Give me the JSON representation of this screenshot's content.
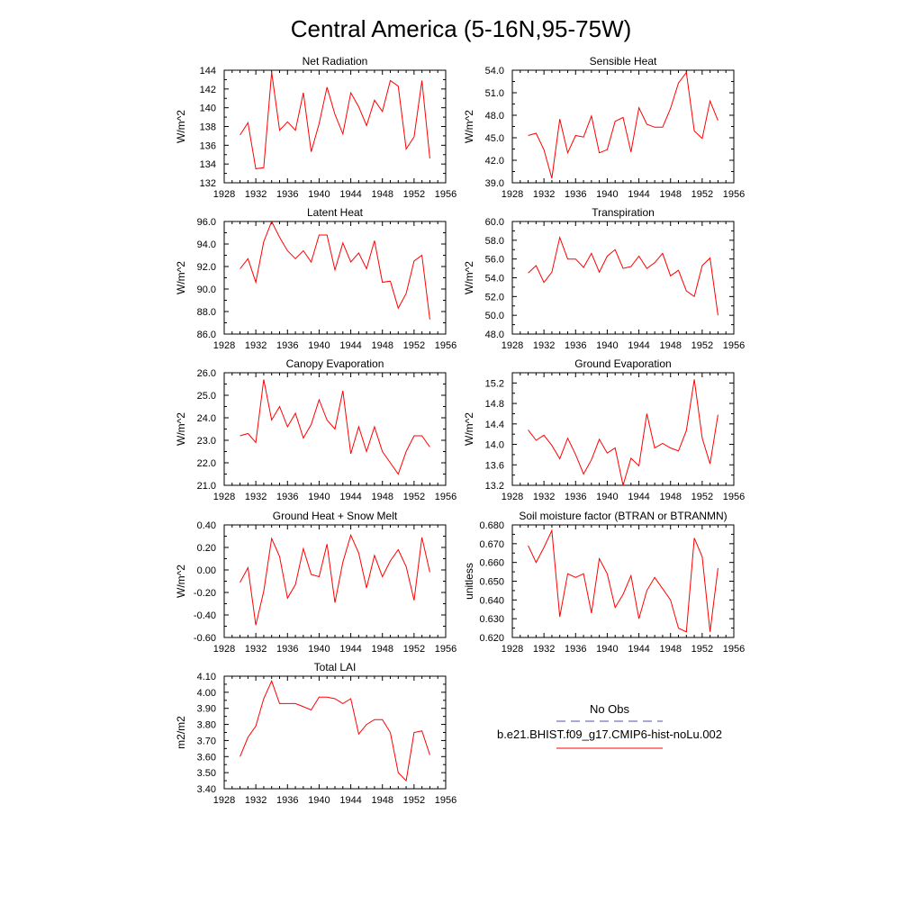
{
  "page_title": "Central America (5-16N,95-75W)",
  "colors": {
    "series": "#ff0000",
    "obs": "#5050b0",
    "frame": "#000000"
  },
  "legend": {
    "obs_label": "No Obs",
    "model_label": "b.e21.BHIST.f09_g17.CMIP6-hist-noLu.002"
  },
  "chart_data": [
    {
      "type": "line",
      "title": "Net Radiation",
      "ylabel": "W/m^2",
      "xlim": [
        1928,
        1956
      ],
      "xticks": [
        "1928",
        "1932",
        "1936",
        "1940",
        "1944",
        "1948",
        "1952",
        "1956"
      ],
      "ylim": [
        132,
        144
      ],
      "yticks": [
        "132",
        "134",
        "136",
        "138",
        "140",
        "142",
        "144"
      ],
      "x": [
        1930,
        1931,
        1932,
        1933,
        1934,
        1935,
        1936,
        1937,
        1938,
        1939,
        1940,
        1941,
        1942,
        1943,
        1944,
        1945,
        1946,
        1947,
        1948,
        1949,
        1950,
        1951,
        1952,
        1953,
        1954
      ],
      "series": [
        {
          "values": [
            137.1,
            138.4,
            133.5,
            133.6,
            143.8,
            137.6,
            138.5,
            137.6,
            141.6,
            135.3,
            138.3,
            142.2,
            139.3,
            137.2,
            141.6,
            140.1,
            138.1,
            140.8,
            139.6,
            142.9,
            142.3,
            135.6,
            136.9,
            142.9,
            134.6
          ]
        }
      ]
    },
    {
      "type": "line",
      "title": "Sensible Heat",
      "ylabel": "W/m^2",
      "xlim": [
        1928,
        1956
      ],
      "xticks": [
        "1928",
        "1932",
        "1936",
        "1940",
        "1944",
        "1948",
        "1952",
        "1956"
      ],
      "ylim": [
        39,
        54
      ],
      "yticks": [
        "39.0",
        "42.0",
        "45.0",
        "48.0",
        "51.0",
        "54.0"
      ],
      "x": [
        1930,
        1931,
        1932,
        1933,
        1934,
        1935,
        1936,
        1937,
        1938,
        1939,
        1940,
        1941,
        1942,
        1943,
        1944,
        1945,
        1946,
        1947,
        1948,
        1949,
        1950,
        1951,
        1952,
        1953,
        1954
      ],
      "series": [
        {
          "values": [
            45.3,
            45.6,
            43.4,
            39.6,
            47.5,
            43.0,
            45.3,
            45.1,
            47.9,
            43.0,
            43.4,
            47.2,
            47.7,
            43.1,
            49.0,
            46.8,
            46.4,
            46.4,
            48.9,
            52.3,
            53.7,
            45.9,
            44.9,
            49.9,
            47.3
          ]
        }
      ]
    },
    {
      "type": "line",
      "title": "Latent Heat",
      "ylabel": "W/m^2",
      "xlim": [
        1928,
        1956
      ],
      "xticks": [
        "1928",
        "1932",
        "1936",
        "1940",
        "1944",
        "1948",
        "1952",
        "1956"
      ],
      "ylim": [
        86,
        96
      ],
      "yticks": [
        "86.0",
        "88.0",
        "90.0",
        "92.0",
        "94.0",
        "96.0"
      ],
      "x": [
        1930,
        1931,
        1932,
        1933,
        1934,
        1935,
        1936,
        1937,
        1938,
        1939,
        1940,
        1941,
        1942,
        1943,
        1944,
        1945,
        1946,
        1947,
        1948,
        1949,
        1950,
        1951,
        1952,
        1953,
        1954
      ],
      "series": [
        {
          "values": [
            91.8,
            92.7,
            90.6,
            94.2,
            96.0,
            94.6,
            93.4,
            92.7,
            93.4,
            92.4,
            94.8,
            94.8,
            91.7,
            94.1,
            92.4,
            93.2,
            91.8,
            94.3,
            90.6,
            90.7,
            88.3,
            89.6,
            92.5,
            93.0,
            87.3
          ]
        }
      ]
    },
    {
      "type": "line",
      "title": "Transpiration",
      "ylabel": "W/m^2",
      "xlim": [
        1928,
        1956
      ],
      "xticks": [
        "1928",
        "1932",
        "1936",
        "1940",
        "1944",
        "1948",
        "1952",
        "1956"
      ],
      "ylim": [
        48,
        60
      ],
      "yticks": [
        "48.0",
        "50.0",
        "52.0",
        "54.0",
        "56.0",
        "58.0",
        "60.0"
      ],
      "x": [
        1930,
        1931,
        1932,
        1933,
        1934,
        1935,
        1936,
        1937,
        1938,
        1939,
        1940,
        1941,
        1942,
        1943,
        1944,
        1945,
        1946,
        1947,
        1948,
        1949,
        1950,
        1951,
        1952,
        1953,
        1954
      ],
      "series": [
        {
          "values": [
            54.5,
            55.3,
            53.5,
            54.6,
            58.3,
            56.0,
            56.0,
            55.1,
            56.6,
            54.6,
            56.3,
            57.0,
            55.0,
            55.2,
            56.3,
            55.0,
            55.6,
            56.6,
            54.2,
            54.8,
            52.6,
            52.0,
            55.3,
            56.1,
            50.0
          ]
        }
      ]
    },
    {
      "type": "line",
      "title": "Canopy Evaporation",
      "ylabel": "W/m^2",
      "xlim": [
        1928,
        1956
      ],
      "xticks": [
        "1928",
        "1932",
        "1936",
        "1940",
        "1944",
        "1948",
        "1952",
        "1956"
      ],
      "ylim": [
        21,
        26
      ],
      "yticks": [
        "21.0",
        "22.0",
        "23.0",
        "24.0",
        "25.0",
        "26.0"
      ],
      "x": [
        1930,
        1931,
        1932,
        1933,
        1934,
        1935,
        1936,
        1937,
        1938,
        1939,
        1940,
        1941,
        1942,
        1943,
        1944,
        1945,
        1946,
        1947,
        1948,
        1949,
        1950,
        1951,
        1952,
        1953,
        1954
      ],
      "series": [
        {
          "values": [
            23.2,
            23.3,
            22.9,
            25.7,
            23.9,
            24.5,
            23.6,
            24.2,
            23.1,
            23.7,
            24.8,
            23.9,
            23.5,
            25.2,
            22.4,
            23.6,
            22.5,
            23.6,
            22.5,
            22.0,
            21.5,
            22.5,
            23.2,
            23.2,
            22.7
          ]
        }
      ]
    },
    {
      "type": "line",
      "title": "Ground Evaporation",
      "ylabel": "W/m^2",
      "xlim": [
        1928,
        1956
      ],
      "xticks": [
        "1928",
        "1932",
        "1936",
        "1940",
        "1944",
        "1948",
        "1952",
        "1956"
      ],
      "ylim": [
        13.2,
        15.4
      ],
      "yticks": [
        "13.2",
        "13.6",
        "14.0",
        "14.4",
        "14.8",
        "15.2"
      ],
      "x": [
        1930,
        1931,
        1932,
        1933,
        1934,
        1935,
        1936,
        1937,
        1938,
        1939,
        1940,
        1941,
        1942,
        1943,
        1944,
        1945,
        1946,
        1947,
        1948,
        1949,
        1950,
        1951,
        1952,
        1953,
        1954
      ],
      "series": [
        {
          "values": [
            14.28,
            14.08,
            14.18,
            13.98,
            13.72,
            14.12,
            13.8,
            13.42,
            13.7,
            14.1,
            13.83,
            13.93,
            13.2,
            13.73,
            13.58,
            14.6,
            13.93,
            14.02,
            13.93,
            13.87,
            14.27,
            15.27,
            14.12,
            13.62,
            14.58
          ]
        }
      ]
    },
    {
      "type": "line",
      "title": "Ground Heat + Snow Melt",
      "ylabel": "W/m^2",
      "xlim": [
        1928,
        1956
      ],
      "xticks": [
        "1928",
        "1932",
        "1936",
        "1940",
        "1944",
        "1948",
        "1952",
        "1956"
      ],
      "ylim": [
        -0.6,
        0.4
      ],
      "yticks": [
        "-0.60",
        "-0.40",
        "-0.20",
        "0.00",
        "0.20",
        "0.40"
      ],
      "x": [
        1930,
        1931,
        1932,
        1933,
        1934,
        1935,
        1936,
        1937,
        1938,
        1939,
        1940,
        1941,
        1942,
        1943,
        1944,
        1945,
        1946,
        1947,
        1948,
        1949,
        1950,
        1951,
        1952,
        1953,
        1954
      ],
      "series": [
        {
          "values": [
            -0.11,
            0.02,
            -0.49,
            -0.19,
            0.28,
            0.12,
            -0.25,
            -0.13,
            0.19,
            -0.04,
            -0.06,
            0.23,
            -0.29,
            0.07,
            0.31,
            0.15,
            -0.16,
            0.13,
            -0.06,
            0.08,
            0.18,
            0.03,
            -0.27,
            0.29,
            -0.02
          ]
        }
      ]
    },
    {
      "type": "line",
      "title": "Soil moisture factor (BTRAN or BTRANMN)",
      "ylabel": "unitless",
      "xlim": [
        1928,
        1956
      ],
      "xticks": [
        "1928",
        "1932",
        "1936",
        "1940",
        "1944",
        "1948",
        "1952",
        "1956"
      ],
      "ylim": [
        0.62,
        0.68
      ],
      "yticks": [
        "0.620",
        "0.630",
        "0.640",
        "0.650",
        "0.660",
        "0.670",
        "0.680"
      ],
      "x": [
        1930,
        1931,
        1932,
        1933,
        1934,
        1935,
        1936,
        1937,
        1938,
        1939,
        1940,
        1941,
        1942,
        1943,
        1944,
        1945,
        1946,
        1947,
        1948,
        1949,
        1950,
        1951,
        1952,
        1953,
        1954
      ],
      "series": [
        {
          "values": [
            0.669,
            0.66,
            0.668,
            0.677,
            0.631,
            0.654,
            0.652,
            0.654,
            0.633,
            0.662,
            0.654,
            0.636,
            0.643,
            0.653,
            0.63,
            0.645,
            0.652,
            0.646,
            0.64,
            0.625,
            0.623,
            0.673,
            0.663,
            0.623,
            0.657
          ]
        }
      ]
    },
    {
      "type": "line",
      "title": "Total LAI",
      "ylabel": "m2/m2",
      "xlim": [
        1928,
        1956
      ],
      "xticks": [
        "1928",
        "1932",
        "1936",
        "1940",
        "1944",
        "1948",
        "1952",
        "1956"
      ],
      "ylim": [
        3.4,
        4.1
      ],
      "yticks": [
        "3.40",
        "3.50",
        "3.60",
        "3.70",
        "3.80",
        "3.90",
        "4.00",
        "4.10"
      ],
      "x": [
        1930,
        1931,
        1932,
        1933,
        1934,
        1935,
        1936,
        1937,
        1938,
        1939,
        1940,
        1941,
        1942,
        1943,
        1944,
        1945,
        1946,
        1947,
        1948,
        1949,
        1950,
        1951,
        1952,
        1953,
        1954
      ],
      "series": [
        {
          "values": [
            3.6,
            3.72,
            3.79,
            3.96,
            4.07,
            3.93,
            3.93,
            3.93,
            3.91,
            3.89,
            3.97,
            3.97,
            3.96,
            3.93,
            3.96,
            3.74,
            3.8,
            3.83,
            3.83,
            3.75,
            3.5,
            3.45,
            3.75,
            3.76,
            3.61
          ]
        }
      ]
    }
  ]
}
